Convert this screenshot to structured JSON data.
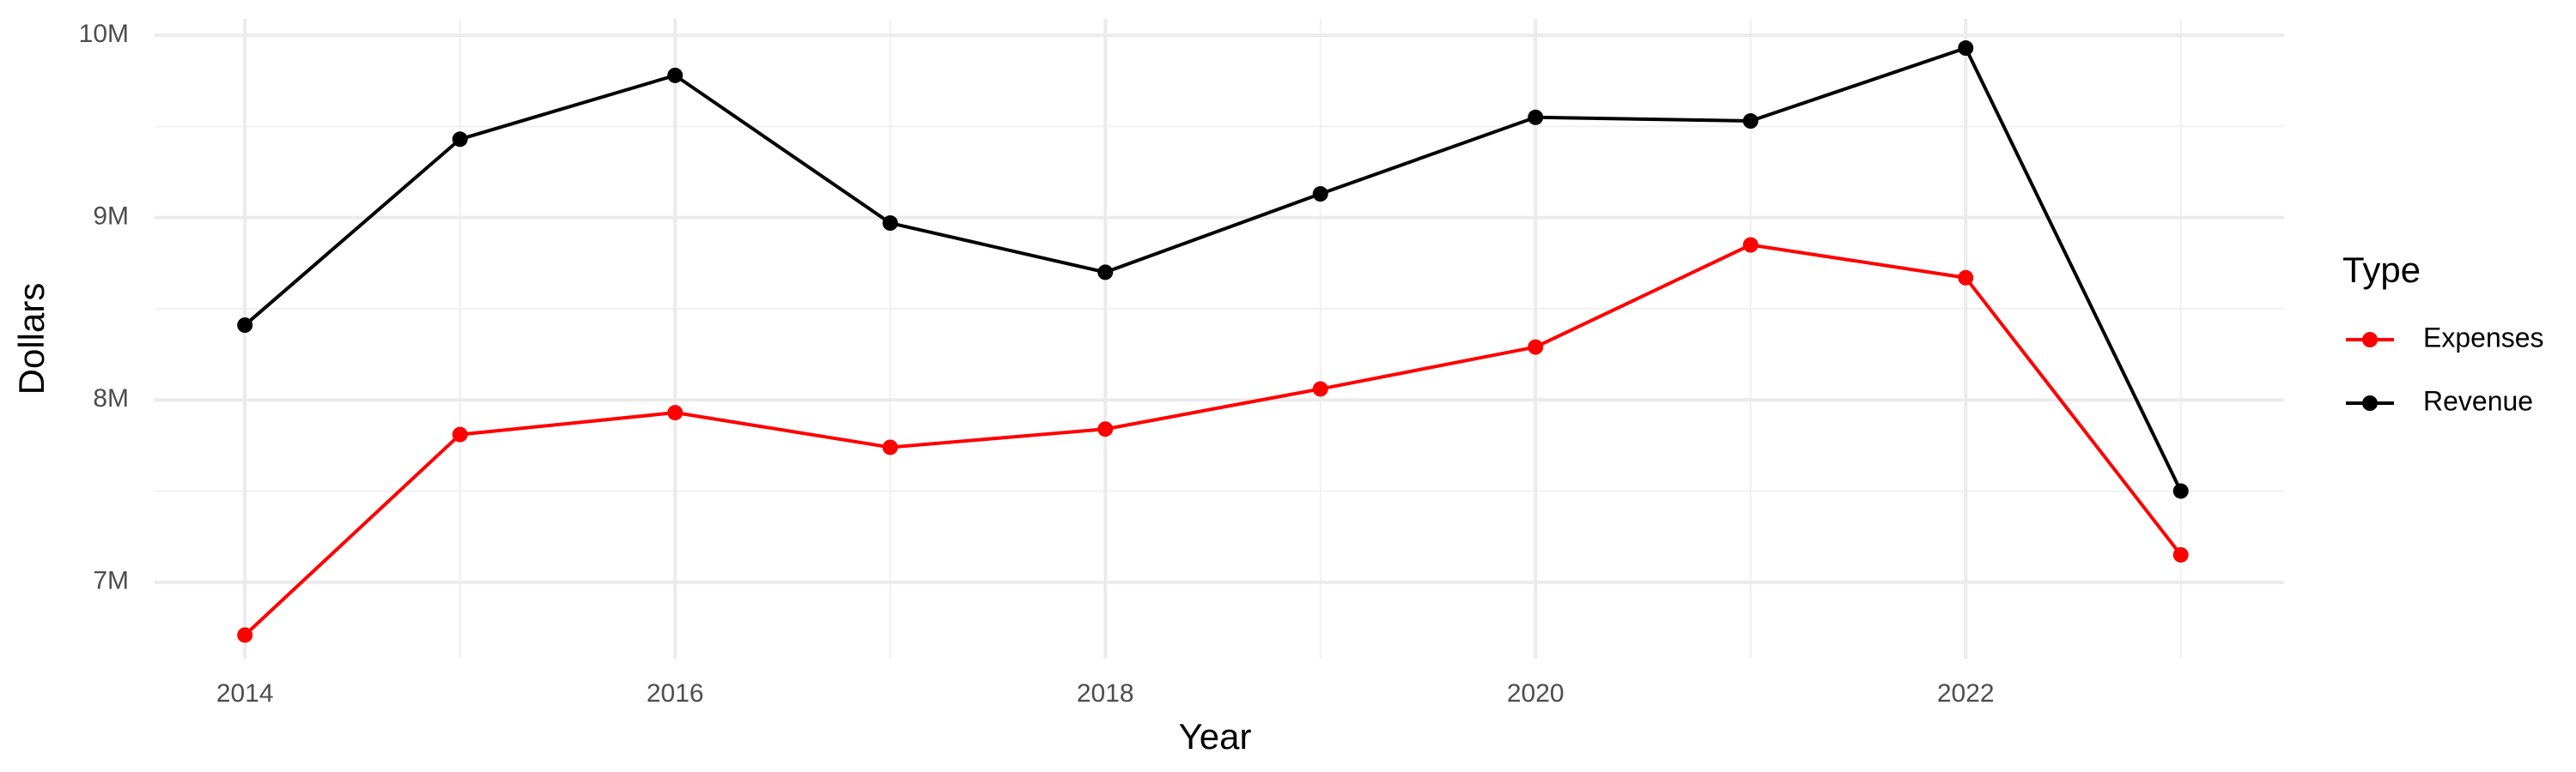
{
  "chart_data": {
    "type": "line",
    "x_label": "Year",
    "y_label": "Dollars",
    "legend_title": "Type",
    "x": [
      2014,
      2015,
      2016,
      2017,
      2018,
      2019,
      2020,
      2021,
      2022,
      2023
    ],
    "series": [
      {
        "name": "Expenses",
        "color": "#ff0000",
        "values": [
          6710000,
          7810000,
          7930000,
          7740000,
          7840000,
          8060000,
          8290000,
          8850000,
          8670000,
          7150000
        ]
      },
      {
        "name": "Revenue",
        "color": "#000000",
        "values": [
          8410000,
          9430000,
          9780000,
          8970000,
          8700000,
          9130000,
          9550000,
          9530000,
          9930000,
          7500000
        ]
      }
    ],
    "xlim": [
      2013.58,
      2023.48
    ],
    "xticks": [
      2014,
      2016,
      2018,
      2020,
      2022
    ],
    "xminor": [
      2015,
      2017,
      2019,
      2021,
      2023
    ],
    "ylim": [
      6580000,
      10090000
    ],
    "yticks": [
      {
        "value": 7000000,
        "label": "7M"
      },
      {
        "value": 8000000,
        "label": "8M"
      },
      {
        "value": 9000000,
        "label": "9M"
      },
      {
        "value": 10000000,
        "label": "10M"
      }
    ],
    "yminor": [
      7500000,
      8500000,
      9500000
    ],
    "grid": true,
    "legend_position": "right"
  }
}
